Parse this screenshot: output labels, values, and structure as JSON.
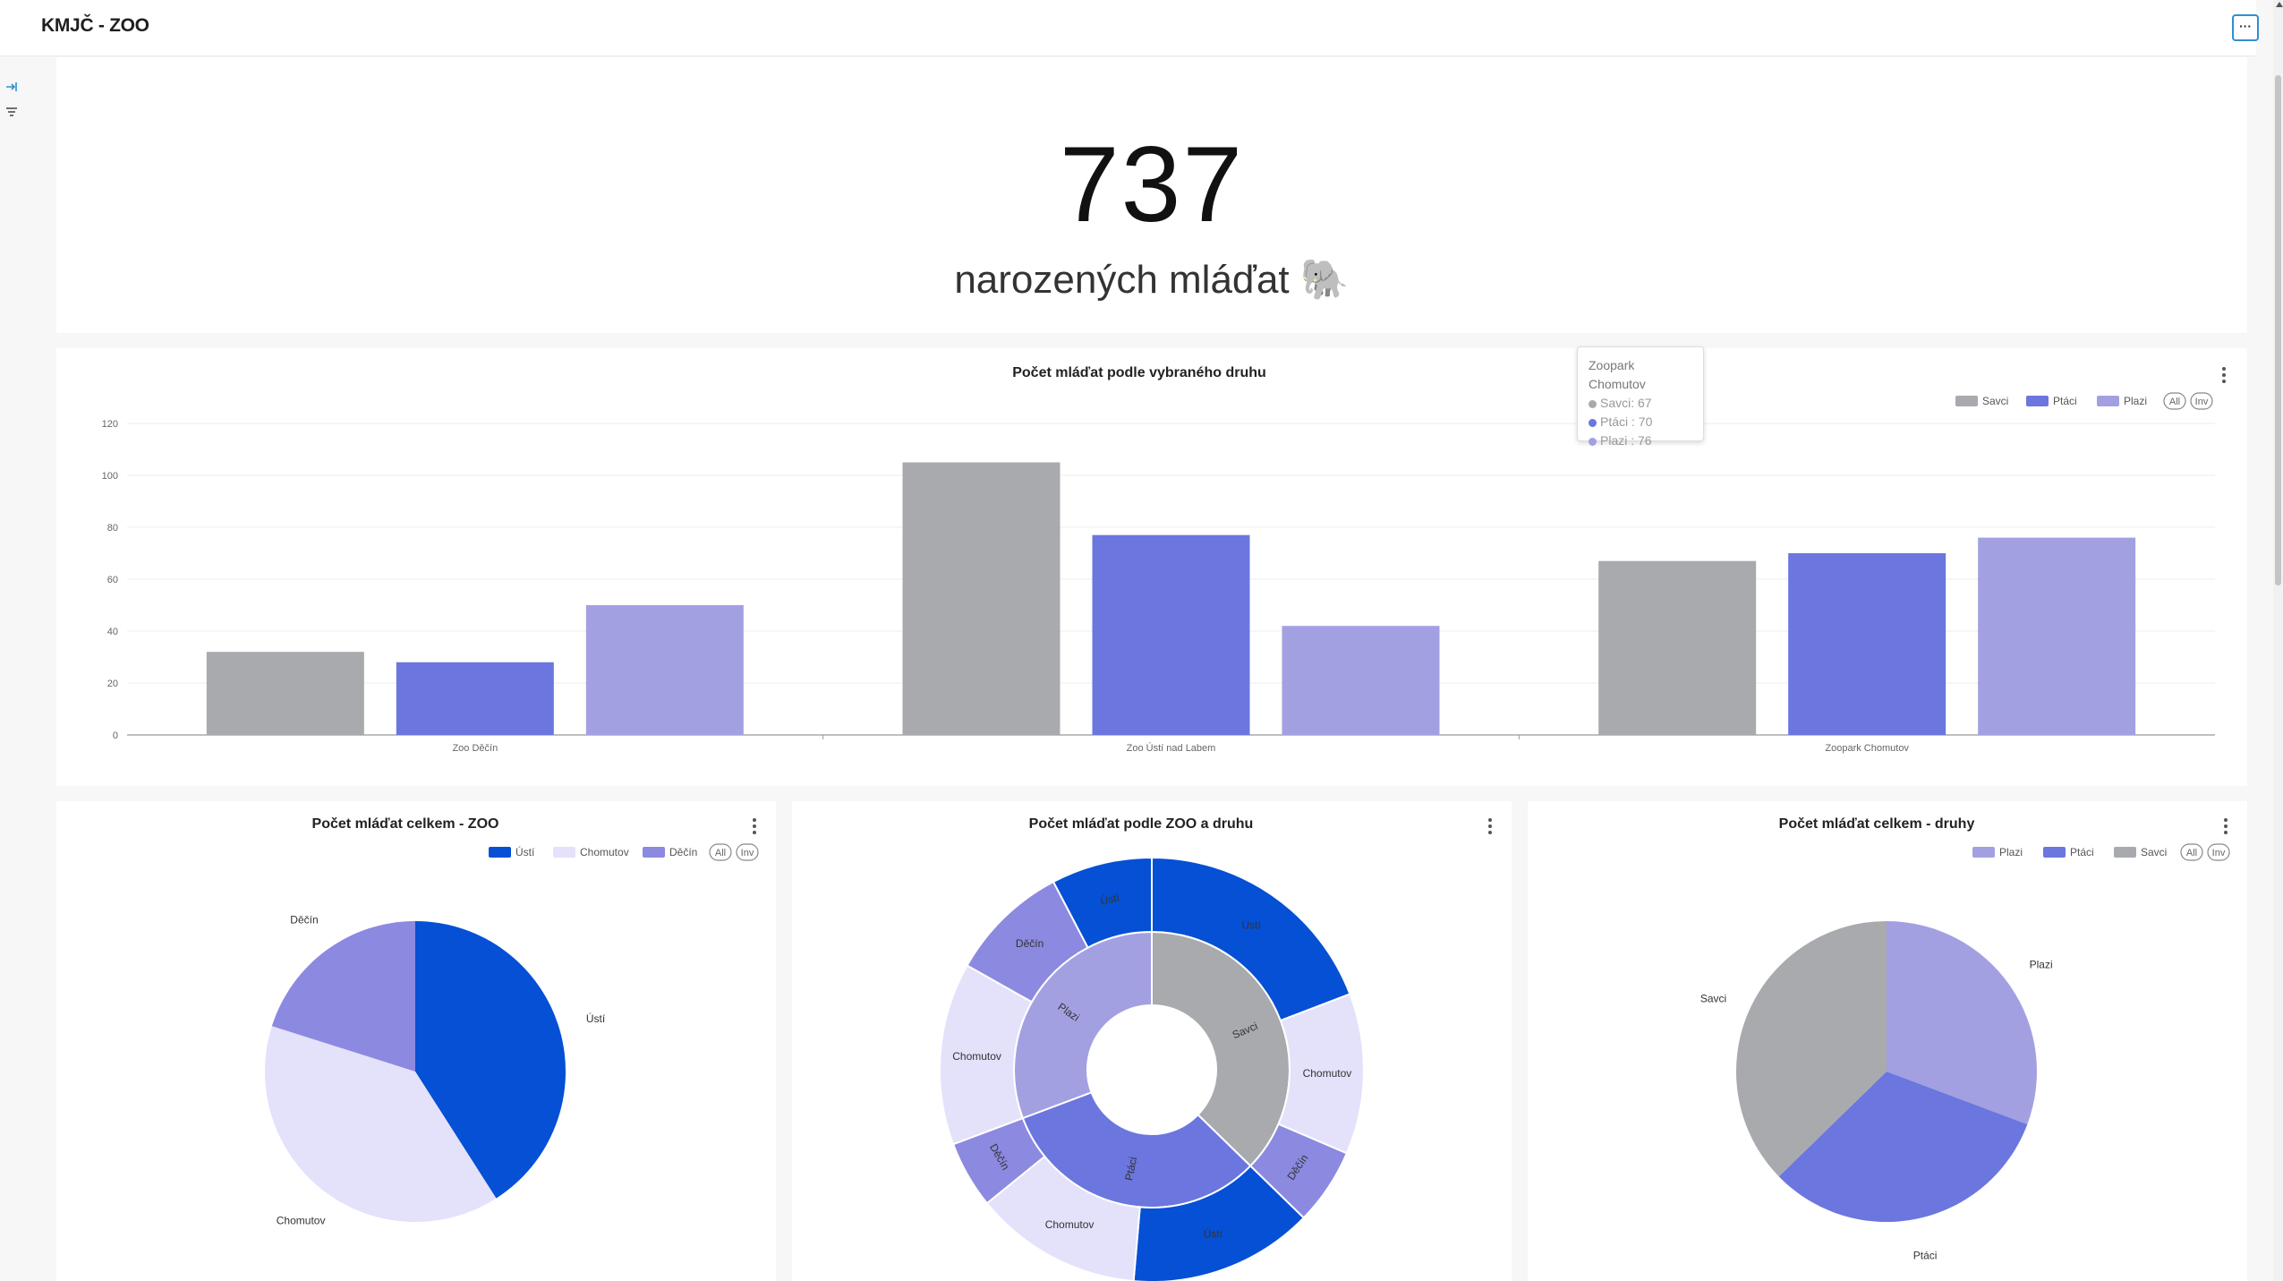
{
  "dashboard": {
    "title": "KMJČ - ZOO",
    "more_label": "···"
  },
  "colors": {
    "savci": "#a8aaae",
    "ptaci": "#6b76de",
    "plazi": "#a3a0e2",
    "usti": "#0550d4",
    "chomutov": "#e4e1fb",
    "decin": "#8c89e0"
  },
  "big_number": {
    "value": "737",
    "subtitle": "narozených mláďat 🐘"
  },
  "tooltip": {
    "title": "Zoopark Chomutov",
    "lines": [
      {
        "text": "Savci: 67",
        "color": "#a8aaae"
      },
      {
        "text": "Ptáci : 70",
        "color": "#6b76de"
      },
      {
        "text": "Plazi : 76",
        "color": "#a3a0e2"
      }
    ]
  },
  "charts": [
    {
      "type": "bar",
      "title": "Počet mláďat podle vybraného druhu",
      "categories": [
        "Zoo Děčín",
        "Zoo Ústí nad Labem",
        "Zoopark Chomutov"
      ],
      "series": [
        {
          "name": "Savci",
          "values": [
            32,
            105,
            67
          ],
          "color": "#a8aaae"
        },
        {
          "name": "Ptáci",
          "values": [
            28,
            77,
            70
          ],
          "color": "#6b76de"
        },
        {
          "name": "Plazi",
          "values": [
            50,
            42,
            76
          ],
          "color": "#a3a0e2"
        }
      ],
      "ylim": [
        0,
        120
      ],
      "yticks": [
        0,
        20,
        40,
        60,
        80,
        100,
        120
      ],
      "legend": [
        "Savci",
        "Ptáci",
        "Plazi",
        "All",
        "Inv"
      ],
      "legend_placement": "top-right",
      "grid": true
    },
    {
      "type": "pie",
      "title": "Počet mláďat celkem - ZOO",
      "slices": [
        {
          "label": "Ústí",
          "value": 224,
          "color": "#0550d4"
        },
        {
          "label": "Chomutov",
          "value": 213,
          "color": "#e4e1fb"
        },
        {
          "label": "Děčín",
          "value": 110,
          "color": "#8c89e0"
        }
      ],
      "legend": [
        "Ústí",
        "Chomutov",
        "Děčín",
        "All",
        "Inv"
      ],
      "legend_placement": "top-right"
    },
    {
      "type": "pie",
      "title": "Počet mláďat podle ZOO a druhu",
      "inner": [
        {
          "label": "Savci",
          "value": 204,
          "color": "#a8aaae"
        },
        {
          "label": "Ptáci",
          "value": 175,
          "color": "#6b76de"
        },
        {
          "label": "Plazi",
          "value": 168,
          "color": "#a3a0e2"
        }
      ],
      "outer": [
        {
          "label": "Ústí",
          "value": 105,
          "color": "#0550d4"
        },
        {
          "label": "Chomutov",
          "value": 67,
          "color": "#e4e1fb"
        },
        {
          "label": "Děčín",
          "value": 32,
          "color": "#8c89e0"
        },
        {
          "label": "Ústí",
          "value": 77,
          "color": "#0550d4"
        },
        {
          "label": "Chomutov",
          "value": 70,
          "color": "#e4e1fb"
        },
        {
          "label": "Děčín",
          "value": 28,
          "color": "#8c89e0"
        },
        {
          "label": "Chomutov",
          "value": 76,
          "color": "#e4e1fb"
        },
        {
          "label": "Děčín",
          "value": 50,
          "color": "#8c89e0"
        },
        {
          "label": "Ústí",
          "value": 42,
          "color": "#0550d4"
        }
      ]
    },
    {
      "type": "pie",
      "title": "Počet mláďat celkem - druhy",
      "slices": [
        {
          "label": "Plazi",
          "value": 168,
          "color": "#a3a0e2"
        },
        {
          "label": "Ptáci",
          "value": 175,
          "color": "#6b76de"
        },
        {
          "label": "Savci",
          "value": 204,
          "color": "#a8aaae"
        }
      ],
      "legend": [
        "Plazi",
        "Ptáci",
        "Savci",
        "All",
        "Inv"
      ],
      "legend_placement": "top-right"
    }
  ]
}
